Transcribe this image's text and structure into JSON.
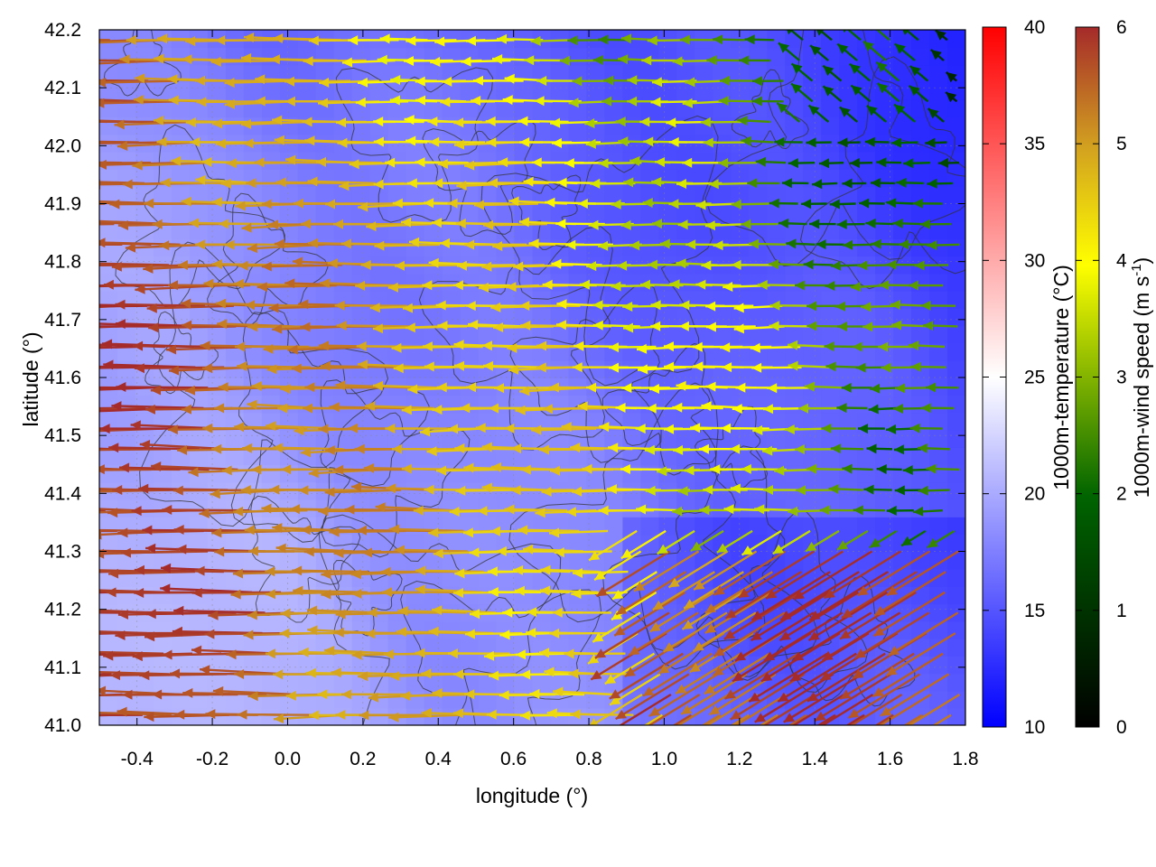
{
  "chart_data": {
    "type": "heatmap",
    "title": "",
    "xlabel": "longitude (°)",
    "ylabel": "latitude (°)",
    "xlim": [
      -0.5,
      1.8
    ],
    "ylim": [
      41.0,
      42.2
    ],
    "x_ticks": [
      "-0.4",
      "-0.2",
      "0.0",
      "0.2",
      "0.4",
      "0.6",
      "0.8",
      "1.0",
      "1.2",
      "1.4",
      "1.6",
      "1.8"
    ],
    "y_ticks": [
      "41.0",
      "41.1",
      "41.2",
      "41.3",
      "41.4",
      "41.5",
      "41.6",
      "41.7",
      "41.8",
      "41.9",
      "42.0",
      "42.1",
      "42.2"
    ],
    "grid": true,
    "layers": [
      {
        "name": "1000m-temperature",
        "kind": "color field",
        "unit": "°C",
        "range": [
          10,
          40
        ],
        "approx_range_shown": [
          14,
          23
        ]
      },
      {
        "name": "terrain",
        "kind": "contour lines",
        "color": "#333333"
      },
      {
        "name": "1000m wind",
        "kind": "vector field",
        "direction": "predominantly from east to west",
        "speed_range_shown": [
          0,
          6
        ]
      }
    ],
    "temperature_colorbar": {
      "label": "1000m-temperature (°C)",
      "range": [
        10,
        40
      ],
      "ticks": [
        "10",
        "15",
        "20",
        "25",
        "30",
        "35",
        "40"
      ],
      "colors": [
        "#0000ff",
        "#ffffff",
        "#ff0000"
      ]
    },
    "wind_colorbar": {
      "label_main": "1000m-wind speed (m s",
      "label_sup": "-1",
      "label_end": ")",
      "range": [
        0,
        6
      ],
      "ticks": [
        "0",
        "1",
        "2",
        "3",
        "4",
        "5",
        "6"
      ],
      "colors": [
        "#000000",
        "#006400",
        "#ffff00",
        "#d2a020",
        "#a52a2a"
      ]
    },
    "regions": [
      {
        "area": "west and south-west",
        "wind_speed": 6,
        "temperature": 21
      },
      {
        "area": "center band",
        "wind_speed": 4,
        "temperature": 19
      },
      {
        "area": "north-east",
        "wind_speed": 1.5,
        "temperature": 15
      },
      {
        "area": "south-east corner",
        "wind_speed": 6,
        "temperature": 16
      }
    ]
  }
}
